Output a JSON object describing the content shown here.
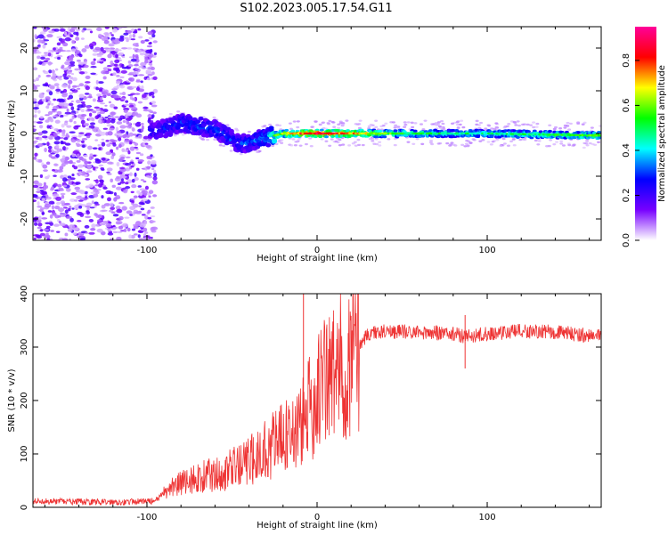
{
  "title": "S102.2023.005.17.54.G11",
  "chart_data": [
    {
      "type": "heatmap",
      "xlabel": "Height of straight line (km)",
      "ylabel": "Frequency (Hz)",
      "xlim": [
        -167,
        167
      ],
      "ylim": [
        -25,
        25
      ],
      "x_ticks": [
        -100,
        0,
        100
      ],
      "y_ticks": [
        -20,
        -10,
        0,
        10,
        20
      ],
      "colorbar": {
        "label": "Normalized spectral amplitude",
        "range": [
          0,
          0.95
        ],
        "ticks": [
          0.0,
          0.2,
          0.4,
          0.6,
          0.8
        ],
        "colors": [
          "#ffffff",
          "#7700ff",
          "#0000ff",
          "#00ffff",
          "#00ff00",
          "#ffff00",
          "#ff0000",
          "#ff0099"
        ]
      },
      "ridge": [
        {
          "x": -95,
          "freq": 0.5,
          "amplitude": 0.25
        },
        {
          "x": -80,
          "freq": 2.5,
          "amplitude": 0.3
        },
        {
          "x": -60,
          "freq": 1.0,
          "amplitude": 0.3
        },
        {
          "x": -45,
          "freq": -2.5,
          "amplitude": 0.3
        },
        {
          "x": -30,
          "freq": -1.0,
          "amplitude": 0.35
        },
        {
          "x": -20,
          "freq": 0.0,
          "amplitude": 0.65
        },
        {
          "x": 0,
          "freq": 0.0,
          "amplitude": 0.85
        },
        {
          "x": 50,
          "freq": 0.0,
          "amplitude": 0.5
        },
        {
          "x": 100,
          "freq": 0.0,
          "amplitude": 0.45
        },
        {
          "x": 167,
          "freq": -0.5,
          "amplitude": 0.55
        }
      ]
    },
    {
      "type": "line",
      "xlabel": "Height of straight line (km)",
      "ylabel": "SNR (10 * v/v)",
      "xlim": [
        -167,
        167
      ],
      "ylim": [
        0,
        400
      ],
      "x_ticks": [
        -100,
        0,
        100
      ],
      "y_ticks": [
        0,
        100,
        200,
        300,
        400
      ],
      "color": "#ee3333",
      "series": [
        {
          "x": [
            -167,
            -140,
            -110,
            -95,
            -85,
            -70,
            -55,
            -40,
            -30,
            -20,
            -15,
            -10,
            -5,
            0,
            5,
            10,
            15,
            20,
            25,
            30,
            40,
            60,
            80,
            87,
            100,
            120,
            140,
            167
          ],
          "y": [
            12,
            10,
            10,
            12,
            40,
            55,
            65,
            85,
            110,
            130,
            140,
            150,
            180,
            215,
            240,
            250,
            265,
            280,
            305,
            325,
            330,
            328,
            325,
            320,
            325,
            330,
            328,
            320
          ]
        }
      ],
      "annotations": [
        {
          "x": -8,
          "y": 400,
          "note": "spike"
        },
        {
          "x": 87,
          "y": 360,
          "note": "spike"
        },
        {
          "x": 87,
          "y": 260,
          "note": "dip"
        }
      ]
    }
  ]
}
